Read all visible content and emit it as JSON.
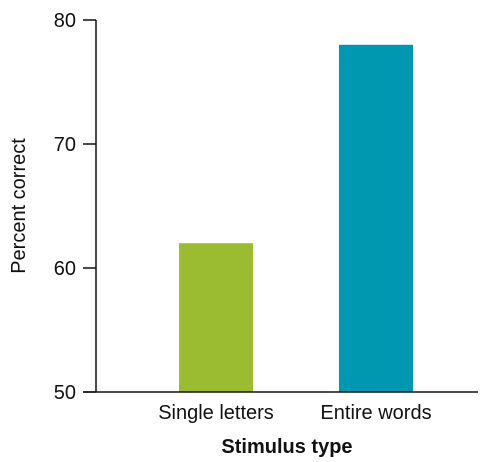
{
  "chart_data": {
    "type": "bar",
    "title": "",
    "xlabel": "Stimulus type",
    "ylabel": "Percent correct",
    "categories": [
      "Single letters",
      "Entire words"
    ],
    "values": [
      62,
      78
    ],
    "ylim": [
      50,
      80
    ],
    "yticks": [
      50,
      60,
      70,
      80
    ],
    "bar_colors": [
      "#9bbb31",
      "#0097b0"
    ],
    "grid": false,
    "legend": "none"
  }
}
